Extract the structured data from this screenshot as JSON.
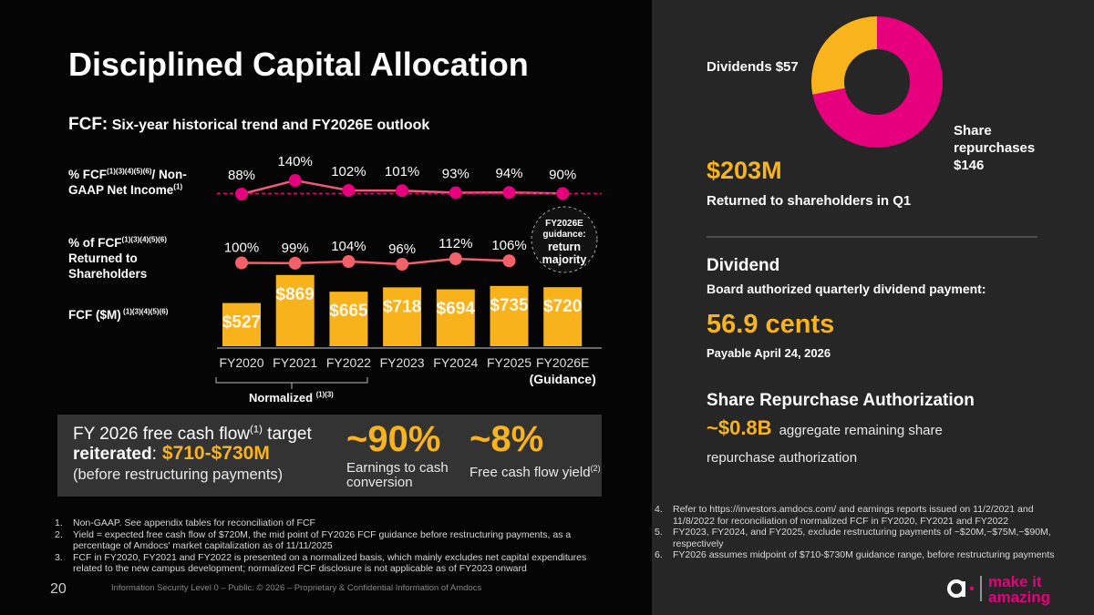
{
  "title": "Disciplined Capital Allocation",
  "subtitle": {
    "lead": "FCF:",
    "text": "Six-year historical trend and FY2026E outlook"
  },
  "chart_data": [
    {
      "type": "combo",
      "categories": [
        "FY2020",
        "FY2021",
        "FY2022",
        "FY2023",
        "FY2024",
        "FY2025",
        "FY2026E"
      ],
      "category_note": "(Guidance)",
      "series": [
        {
          "type": "line",
          "color": "#e6007e",
          "line_color": "#f0587a",
          "label": [
            {
              "text": "% FCF"
            },
            {
              "sup": "(1)(3)(4)(5)(6)"
            },
            {
              "text": "/ Non-GAAP Net Income"
            },
            {
              "sup": "(1)"
            }
          ],
          "values": [
            88,
            140,
            102,
            101,
            93,
            94,
            90
          ],
          "value_labels": [
            "88%",
            "140%",
            "102%",
            "101%",
            "93%",
            "94%",
            "90%"
          ]
        },
        {
          "type": "line",
          "color": "#f2606a",
          "line_color": "#f2606a",
          "label": [
            {
              "text": "% of FCF"
            },
            {
              "sup": "(1)(3)(4)(5)(6)"
            },
            {
              "text": " Returned to Shareholders"
            }
          ],
          "values": [
            100,
            99,
            104,
            96,
            112,
            106,
            null
          ],
          "value_labels": [
            "100%",
            "99%",
            "104%",
            "96%",
            "112%",
            "106%",
            null
          ]
        },
        {
          "type": "bar",
          "color": "#f7b21c",
          "label": [
            {
              "text": "FCF ($M)"
            },
            {
              "sup": " (1)(3)(4)(5)(6)"
            }
          ],
          "values": [
            527,
            869,
            665,
            718,
            694,
            735,
            720
          ],
          "value_labels": [
            "$527",
            "$869",
            "$665",
            "$718",
            "$694",
            "$735",
            "$720"
          ]
        }
      ],
      "reference_line": true,
      "normalized": [
        {
          "text": "Normalized "
        },
        {
          "sup": "(1)(3)"
        }
      ],
      "guidance": {
        "label": "FY2026E guidance:",
        "text": "return majority"
      }
    },
    {
      "type": "pie",
      "donut": true,
      "categories": [
        "Dividends",
        "Share repurchases"
      ],
      "values": [
        57,
        146
      ],
      "value_labels": [
        "$57",
        "$146"
      ],
      "colors": [
        "#f9b31c",
        "#e6007e"
      ]
    }
  ],
  "target_box": {
    "line1": [
      {
        "text": "FY 2026 free cash flow"
      },
      {
        "sup": "(1)"
      },
      {
        "text": " target"
      }
    ],
    "reiterated": "reiterated",
    "colon": ":",
    "range": "$710-$730M",
    "note": "(before restructuring payments)",
    "metrics": [
      {
        "value": "~90%",
        "caption": [
          {
            "text": "Earnings to cash conversion"
          }
        ]
      },
      {
        "value": "~8%",
        "caption": [
          {
            "text": "Free cash flow yield"
          },
          {
            "sup": "(2)"
          }
        ]
      }
    ]
  },
  "returned": {
    "amount": "$203M",
    "caption": "Returned to shareholders in Q1"
  },
  "dividend": {
    "heading": "Dividend",
    "text": "Board authorized quarterly dividend payment:",
    "amount": "56.9 cents",
    "payable": "Payable April 24, 2026"
  },
  "repurchase": {
    "heading": "Share Repurchase Authorization",
    "amount": "~$0.8B",
    "text": "aggregate remaining share repurchase authorization"
  },
  "footnotes_left": [
    {
      "num": "1.",
      "text": "Non-GAAP. See appendix tables for reconciliation of FCF"
    },
    {
      "num": "2.",
      "text": "Yield = expected free cash flow of $720M, the mid point of FY2026 FCF guidance before restructuring payments, as a percentage of Amdocs' market capitalization as of 11/11/2025"
    },
    {
      "num": "3.",
      "text": "FCF in FY2020, FY2021 and FY2022 is presented on a normalized basis, which mainly excludes net capital expenditures related to the new campus development; normalized FCF disclosure is not applicable as of FY2023 onward"
    }
  ],
  "footnotes_right": [
    {
      "num": "4.",
      "text": "Refer to https://investors.amdocs.com/ and earnings reports issued on 11/2/2021 and 11/8/2022 for reconciliation of normalized FCF in FY2020, FY2021 and FY2022"
    },
    {
      "num": "5.",
      "text": "FY2023, FY2024, and FY2025, exclude restructuring payments of ~$20M,~$75M,~$90M, respectively"
    },
    {
      "num": "6.",
      "text": "FY2026 assumes midpoint of $710-$730M guidance range, before restructuring payments"
    }
  ],
  "footer": {
    "page": "20",
    "classification": "Information Security Level 0 – Public. © 2026 – Proprietary & Confidential Information of Amdocs",
    "logo_top": "make it",
    "logo_bottom": "amazing"
  }
}
